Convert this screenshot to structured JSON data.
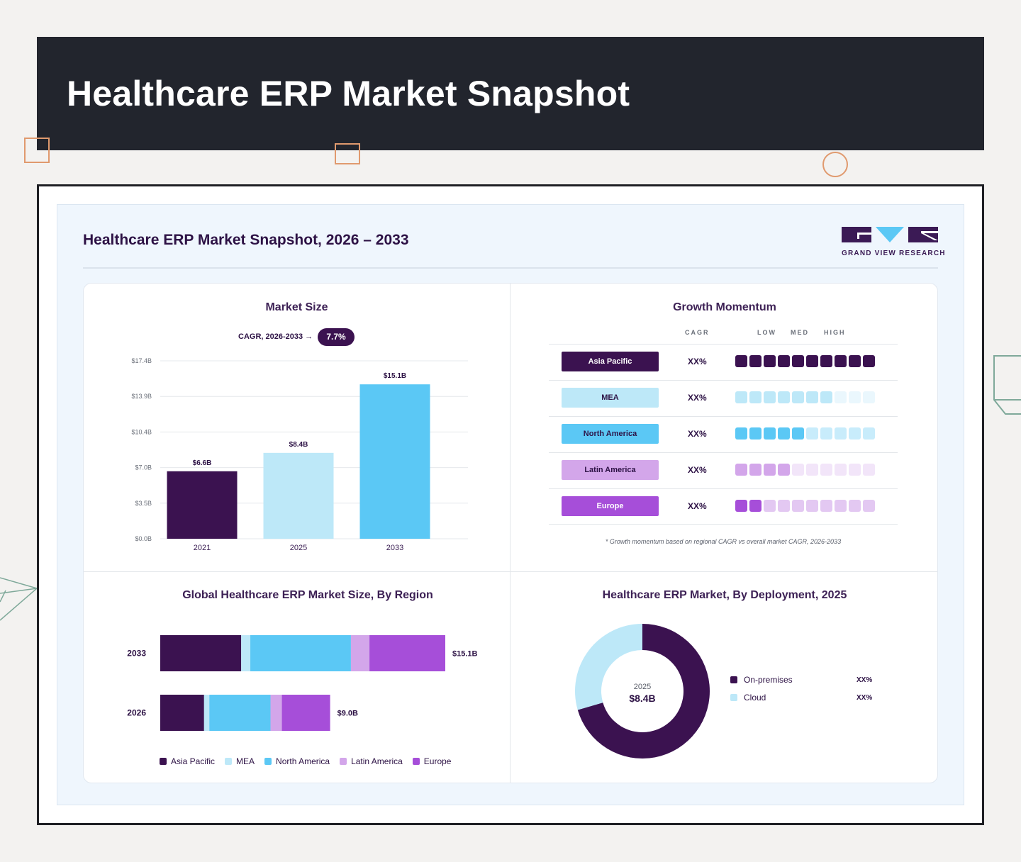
{
  "banner": {
    "title": "Healthcare ERP Market Snapshot"
  },
  "snapshot": {
    "title": "Healthcare ERP Market Snapshot, 2026 – 2033"
  },
  "logo": {
    "text": "GRAND VIEW RESEARCH",
    "colors": {
      "dark": "#3b1a55",
      "light": "#5bc8f5"
    }
  },
  "market_size": {
    "title": "Market Size",
    "cagr_label": "CAGR, 2026-2033 →",
    "cagr_value": "7.7%"
  },
  "growth": {
    "title": "Growth Momentum",
    "col_cagr": "CAGR",
    "col_low": "LOW",
    "col_med": "MED",
    "col_high": "HIGH",
    "note": "* Growth momentum based on regional CAGR vs overall market CAGR, 2026-2033",
    "rows": [
      {
        "region": "Asia Pacific",
        "value": "XX%",
        "level": 10,
        "color": "#3b1250",
        "text_color": "#ffffff",
        "dim_color": "#3b1250"
      },
      {
        "region": "MEA",
        "value": "XX%",
        "level": 7,
        "color": "#bde8f8",
        "text_color": "#2d1245",
        "dim_color": "#eaf7fd"
      },
      {
        "region": "North America",
        "value": "XX%",
        "level": 5,
        "color": "#5bc8f5",
        "text_color": "#2d1245",
        "dim_color": "#c8ecfb"
      },
      {
        "region": "Latin America",
        "value": "XX%",
        "level": 4,
        "color": "#d3a6ea",
        "text_color": "#2d1245",
        "dim_color": "#f2e5f9"
      },
      {
        "region": "Europe",
        "value": "XX%",
        "level": 2,
        "color": "#a64ed9",
        "text_color": "#ffffff",
        "dim_color": "#e3c8f2"
      }
    ]
  },
  "region_panel": {
    "title": "Global Healthcare ERP Market Size, By Region",
    "legend": [
      {
        "name": "Asia Pacific",
        "color": "#3b1250"
      },
      {
        "name": "MEA",
        "color": "#bde8f8"
      },
      {
        "name": "North America",
        "color": "#5bc8f5"
      },
      {
        "name": "Latin America",
        "color": "#d3a6ea"
      },
      {
        "name": "Europe",
        "color": "#a64ed9"
      }
    ]
  },
  "deployment": {
    "title": "Healthcare ERP Market, By Deployment, 2025",
    "center_year": "2025",
    "center_value": "$8.4B",
    "items": [
      {
        "name": "On-premises",
        "value": "XX%",
        "color": "#3b1250"
      },
      {
        "name": "Cloud",
        "value": "XX%",
        "color": "#bde8f8"
      }
    ]
  },
  "chart_data": [
    {
      "type": "bar",
      "title": "Market Size",
      "categories": [
        "2021",
        "2025",
        "2033"
      ],
      "values": [
        6.6,
        8.4,
        15.1
      ],
      "value_labels": [
        "$6.6B",
        "$8.4B",
        "$15.1B"
      ],
      "colors": [
        "#3b1250",
        "#bde8f8",
        "#5bc8f5"
      ],
      "ylim": [
        0,
        17.4
      ],
      "yticks": [
        "$0.0B",
        "$3.5B",
        "$7.0B",
        "$10.4B",
        "$13.9B",
        "$17.4B"
      ],
      "grid": true
    },
    {
      "type": "bar",
      "orientation": "horizontal",
      "stacked": true,
      "title": "Global Healthcare ERP Market Size, By Region",
      "categories": [
        "2033",
        "2026"
      ],
      "series_names": [
        "Asia Pacific",
        "MEA",
        "North America",
        "Latin America",
        "Europe"
      ],
      "shares": [
        [
          0.284,
          0.032,
          0.353,
          0.065,
          0.266
        ],
        [
          0.258,
          0.031,
          0.36,
          0.067,
          0.284
        ]
      ],
      "totals": [
        15.1,
        9.0
      ],
      "total_labels": [
        "$15.1B",
        "$9.0B"
      ],
      "legend": "bottom"
    },
    {
      "type": "pie",
      "donut": true,
      "title": "Healthcare ERP Market, By Deployment, 2025",
      "labels": [
        "On-premises",
        "Cloud"
      ],
      "values": [
        70.5,
        29.5
      ],
      "value_labels": [
        "XX%",
        "XX%"
      ],
      "legend": "right"
    }
  ]
}
